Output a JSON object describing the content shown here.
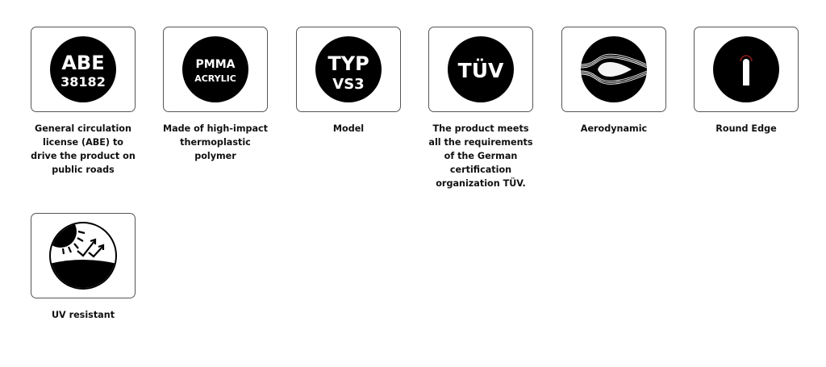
{
  "features": [
    {
      "icon": "abe-badge-icon",
      "badge_lines": [
        "ABE",
        "38182"
      ],
      "caption": "General circulation license (ABE) to drive the product on public roads"
    },
    {
      "icon": "pmma-badge-icon",
      "badge_lines": [
        "PMMA",
        "ACRYLIC"
      ],
      "caption": "Made of high-impact thermoplastic polymer"
    },
    {
      "icon": "typ-badge-icon",
      "badge_lines": [
        "TYP",
        "VS3"
      ],
      "caption": "Model"
    },
    {
      "icon": "tuv-badge-icon",
      "badge_lines": [
        "TÜV"
      ],
      "caption": "The product meets all the requirements of the German certification organization TÜV."
    },
    {
      "icon": "aerodynamic-icon",
      "caption": "Aerodynamic"
    },
    {
      "icon": "round-edge-icon",
      "caption": "Round Edge"
    },
    {
      "icon": "uv-resistant-icon",
      "caption": "UV resistant"
    }
  ],
  "colors": {
    "badge": "#000000",
    "border": "#555555",
    "round_edge_accent": "#8b1a1a"
  }
}
